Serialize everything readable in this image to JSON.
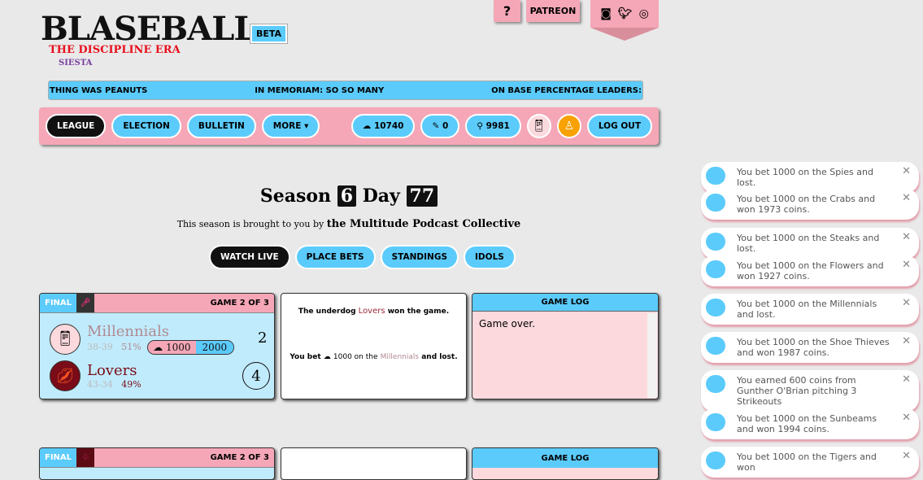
{
  "header": {
    "logo": "BLASEBALL",
    "beta": "BETA",
    "era": "THE DISCIPLINE ERA",
    "sub_era": "SIESTA",
    "help": "?",
    "patreon": "PATREON"
  },
  "social": [
    "discord-icon",
    "twitter-icon",
    "instagram-icon"
  ],
  "ticker": [
    "THING WAS PEANUTS",
    "IN MEMORIAM: SO SO MANY",
    "ON BASE PERCENTAGE LEADERS:"
  ],
  "nav": {
    "league": "LEAGUE",
    "election": "ELECTION",
    "bulletin": "BULLETIN",
    "more": "MORE ▾",
    "coins": "10740",
    "votes": "0",
    "peanuts": "9981",
    "logout": "LOG OUT"
  },
  "season": {
    "label_season": "Season",
    "season": "6",
    "label_day": "Day",
    "day": "77"
  },
  "sponsor": {
    "prefix": "This season is brought to you by",
    "name": "the Multitude Podcast Collective"
  },
  "tabs": [
    "WATCH LIVE",
    "PLACE BETS",
    "STANDINGS",
    "IDOLS"
  ],
  "games": [
    {
      "status": "FINAL",
      "series": "GAME 2 OF 3",
      "away": {
        "name": "Millennials",
        "record": "38-39",
        "odds": "51%",
        "score": "2",
        "color": "#b08a92"
      },
      "home": {
        "name": "Lovers",
        "record": "43-34",
        "odds": "49%",
        "score": "4",
        "color": "#7a0b18"
      },
      "bet": {
        "amount": "1000",
        "payout": "2000"
      },
      "summary": {
        "pre": "The underdog",
        "team": "Lovers",
        "post": "won the game."
      },
      "bet_result": {
        "pre": "You bet",
        "amount": "1000 on the",
        "team": "Millennials",
        "post": "and lost."
      },
      "log_title": "GAME LOG",
      "log": "Game over."
    },
    {
      "status": "FINAL",
      "series": "GAME 2 OF 3",
      "log_title": "GAME LOG"
    }
  ],
  "toasts": [
    "You bet 1000 on the Spies and lost.",
    "You bet 1000 on the Crabs and won 1973 coins.",
    "You bet 1000 on the Steaks and lost.",
    "You bet 1000 on the Flowers and won 1927 coins.",
    "You bet 1000 on the Millennials and lost.",
    "You bet 1000 on the Shoe Thieves and won 1987 coins.",
    "You earned 600 coins from Gunther O'Brian pitching 3 Strikeouts",
    "You bet 1000 on the Sunbeams and won 1994 coins.",
    "You bet 1000 on the Tigers and won"
  ],
  "colors": {
    "pink": "#f5a7b7",
    "blue": "#5bcbfb",
    "bg": "#e9e9e9"
  }
}
